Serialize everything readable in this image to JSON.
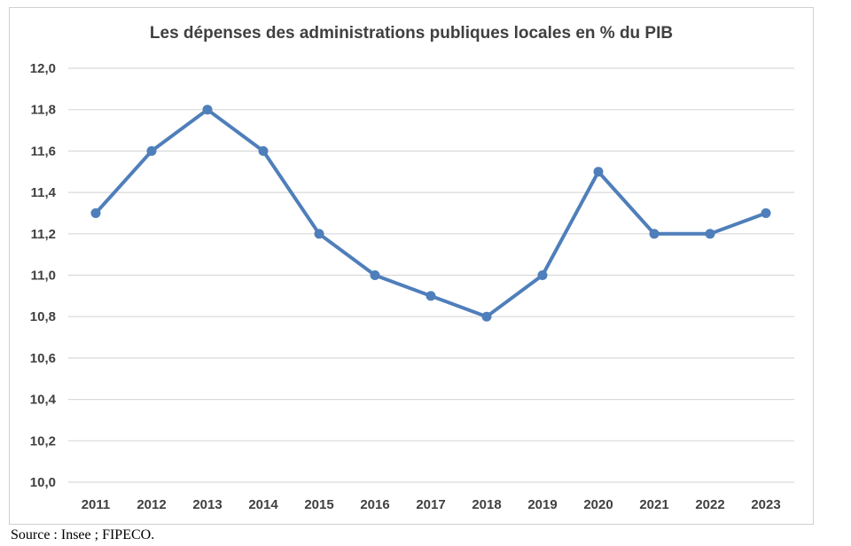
{
  "chart_data": {
    "type": "line",
    "title": "Les dépenses  des administrations publiques  locales en % du PIB",
    "xlabel": "",
    "ylabel": "",
    "categories": [
      "2011",
      "2012",
      "2013",
      "2014",
      "2015",
      "2016",
      "2017",
      "2018",
      "2019",
      "2020",
      "2021",
      "2022",
      "2023"
    ],
    "series": [
      {
        "values": [
          11.3,
          11.6,
          11.8,
          11.6,
          11.2,
          11.0,
          10.9,
          10.8,
          11.0,
          11.5,
          11.2,
          11.2,
          11.3
        ]
      }
    ],
    "ylim": [
      10.0,
      12.0
    ],
    "yticks": [
      "10,0",
      "10,2",
      "10,4",
      "10,6",
      "10,8",
      "11,0",
      "11,2",
      "11,4",
      "11,6",
      "11,8",
      "12,0"
    ],
    "grid": true,
    "legend": "none",
    "colors": {
      "line": "#4f7fba",
      "grid": "#d9d9d9"
    }
  },
  "source": "Source : Insee ; FIPECO."
}
